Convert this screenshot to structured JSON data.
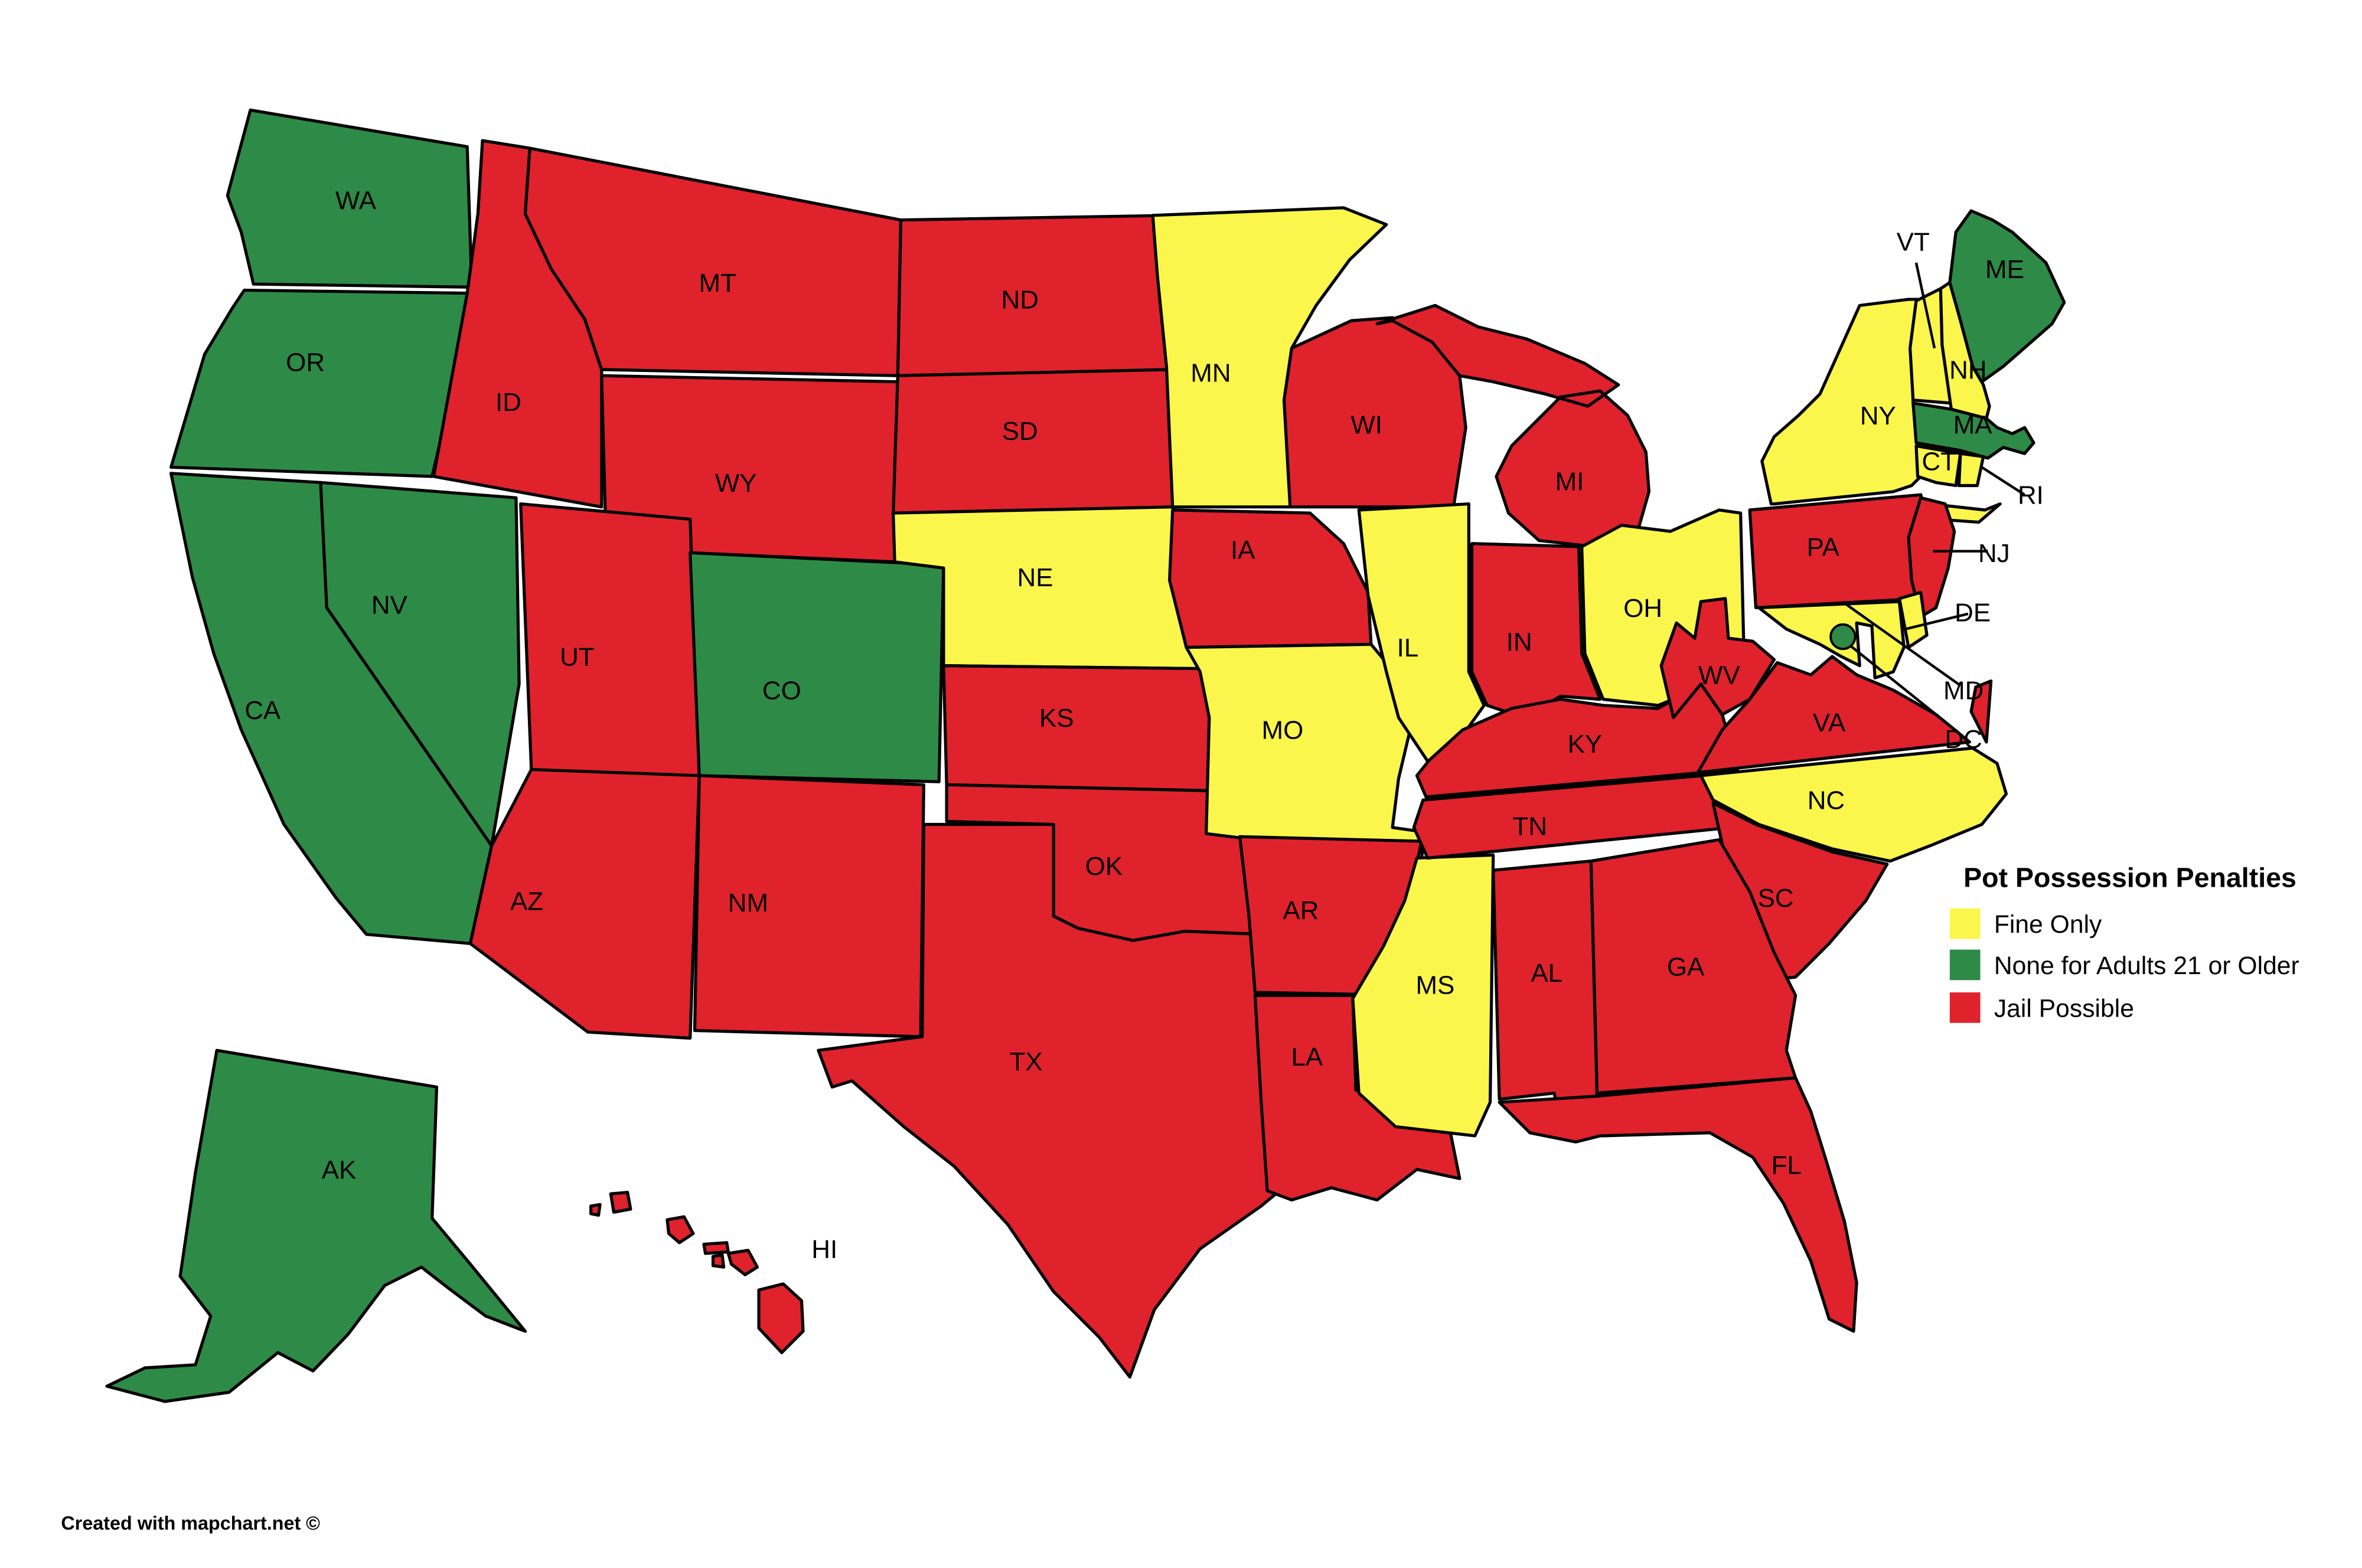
{
  "legend": {
    "title": "Pot Possession Penalties",
    "colors": {
      "fine": "#FBF64B",
      "none": "#2E8B47",
      "jail": "#E0222C"
    },
    "items": [
      {
        "key": "fine",
        "label": "Fine Only"
      },
      {
        "key": "none",
        "label": "None for Adults 21 or Older"
      },
      {
        "key": "jail",
        "label": "Jail Possible"
      }
    ]
  },
  "footer": {
    "credit": "Created with mapchart.net ©"
  },
  "map": {
    "background": "#FFFFFF",
    "border_color": "#000000",
    "states": [
      {
        "id": "WA",
        "label": "WA",
        "category": "none"
      },
      {
        "id": "OR",
        "label": "OR",
        "category": "none"
      },
      {
        "id": "CA",
        "label": "CA",
        "category": "none"
      },
      {
        "id": "NV",
        "label": "NV",
        "category": "none"
      },
      {
        "id": "ID",
        "label": "ID",
        "category": "jail"
      },
      {
        "id": "MT",
        "label": "MT",
        "category": "jail"
      },
      {
        "id": "WY",
        "label": "WY",
        "category": "jail"
      },
      {
        "id": "UT",
        "label": "UT",
        "category": "jail"
      },
      {
        "id": "CO",
        "label": "CO",
        "category": "none"
      },
      {
        "id": "AZ",
        "label": "AZ",
        "category": "jail"
      },
      {
        "id": "NM",
        "label": "NM",
        "category": "jail"
      },
      {
        "id": "ND",
        "label": "ND",
        "category": "jail"
      },
      {
        "id": "SD",
        "label": "SD",
        "category": "jail"
      },
      {
        "id": "NE",
        "label": "NE",
        "category": "fine"
      },
      {
        "id": "KS",
        "label": "KS",
        "category": "jail"
      },
      {
        "id": "OK",
        "label": "OK",
        "category": "jail"
      },
      {
        "id": "TX",
        "label": "TX",
        "category": "jail"
      },
      {
        "id": "MN",
        "label": "MN",
        "category": "fine"
      },
      {
        "id": "IA",
        "label": "IA",
        "category": "jail"
      },
      {
        "id": "MO",
        "label": "MO",
        "category": "fine"
      },
      {
        "id": "AR",
        "label": "AR",
        "category": "jail"
      },
      {
        "id": "LA",
        "label": "LA",
        "category": "jail"
      },
      {
        "id": "WI",
        "label": "WI",
        "category": "jail"
      },
      {
        "id": "IL",
        "label": "IL",
        "category": "fine"
      },
      {
        "id": "MS",
        "label": "MS",
        "category": "fine"
      },
      {
        "id": "MI",
        "label": "MI",
        "category": "jail"
      },
      {
        "id": "IN",
        "label": "IN",
        "category": "jail"
      },
      {
        "id": "OH",
        "label": "OH",
        "category": "fine"
      },
      {
        "id": "KY",
        "label": "KY",
        "category": "jail"
      },
      {
        "id": "TN",
        "label": "TN",
        "category": "jail"
      },
      {
        "id": "WV",
        "label": "WV",
        "category": "jail"
      },
      {
        "id": "VA",
        "label": "VA",
        "category": "jail"
      },
      {
        "id": "NC",
        "label": "NC",
        "category": "fine"
      },
      {
        "id": "SC",
        "label": "SC",
        "category": "jail"
      },
      {
        "id": "GA",
        "label": "GA",
        "category": "jail"
      },
      {
        "id": "AL",
        "label": "AL",
        "category": "jail"
      },
      {
        "id": "FL",
        "label": "FL",
        "category": "jail"
      },
      {
        "id": "PA",
        "label": "PA",
        "category": "jail"
      },
      {
        "id": "NY",
        "label": "NY",
        "category": "fine"
      },
      {
        "id": "ME",
        "label": "ME",
        "category": "none"
      },
      {
        "id": "VT",
        "label": "VT",
        "category": "fine"
      },
      {
        "id": "NH",
        "label": "NH",
        "category": "fine"
      },
      {
        "id": "MA",
        "label": "MA",
        "category": "none"
      },
      {
        "id": "CT",
        "label": "CT",
        "category": "fine"
      },
      {
        "id": "RI",
        "label": "RI",
        "category": "fine"
      },
      {
        "id": "NJ",
        "label": "NJ",
        "category": "jail"
      },
      {
        "id": "DE",
        "label": "DE",
        "category": "fine"
      },
      {
        "id": "MD",
        "label": "MD",
        "category": "fine"
      },
      {
        "id": "AK",
        "label": "AK",
        "category": "none"
      },
      {
        "id": "HI",
        "label": "HI",
        "category": "jail"
      },
      {
        "id": "DC",
        "label": "DC",
        "category": "none"
      }
    ]
  }
}
